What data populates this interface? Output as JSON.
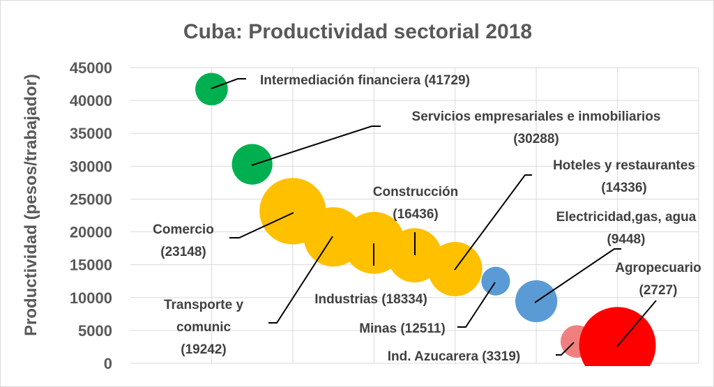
{
  "chart_data": {
    "type": "scatter",
    "subtype": "bubble",
    "title": "Cuba: Productividad sectorial 2018",
    "ylabel": "Productividad (pesos/trabajador)",
    "xlabel": "",
    "ylim": [
      0,
      45000
    ],
    "ytick_step": 5000,
    "yticks": [
      "0",
      "5000",
      "10000",
      "15000",
      "20000",
      "25000",
      "30000",
      "35000",
      "40000",
      "45000"
    ],
    "xlim": [
      0,
      14
    ],
    "grid": true,
    "legend": "none",
    "points": [
      {
        "label_lines": [
          "Intermediación financiera (41729)"
        ],
        "x": 2,
        "y": 41729,
        "size": 0.18,
        "color": "#00b050"
      },
      {
        "label_lines": [
          "Servicios empresariales e inmobiliarios",
          "(30288)"
        ],
        "x": 3,
        "y": 30288,
        "size": 0.28,
        "color": "#00b050"
      },
      {
        "label_lines": [
          "Comercio",
          "(23148)"
        ],
        "x": 4,
        "y": 23148,
        "size": 0.75,
        "color": "#ffc000"
      },
      {
        "label_lines": [
          "Transporte y",
          "comunic",
          "(19242)"
        ],
        "x": 5,
        "y": 19242,
        "size": 0.6,
        "color": "#ffc000"
      },
      {
        "label_lines": [
          "Industrias (18334)"
        ],
        "x": 6,
        "y": 18334,
        "size": 0.65,
        "color": "#ffc000"
      },
      {
        "label_lines": [
          "Construcción",
          "(16436)"
        ],
        "x": 7,
        "y": 16436,
        "size": 0.5,
        "color": "#ffc000"
      },
      {
        "label_lines": [
          "Hoteles y restaurantes",
          "(14336)"
        ],
        "x": 8,
        "y": 14336,
        "size": 0.5,
        "color": "#ffc000"
      },
      {
        "label_lines": [
          "Minas (12511)"
        ],
        "x": 9,
        "y": 12511,
        "size": 0.14,
        "color": "#5b9bd5"
      },
      {
        "label_lines": [
          "Electricidad,gas, agua",
          "(9448)"
        ],
        "x": 10,
        "y": 9448,
        "size": 0.3,
        "color": "#5b9bd5"
      },
      {
        "label_lines": [
          "Ind. Azucarera (3319)"
        ],
        "x": 11,
        "y": 3319,
        "size": 0.18,
        "color": "#f08080"
      },
      {
        "label_lines": [
          "Agropecuario",
          "(2727)"
        ],
        "x": 12,
        "y": 2727,
        "size": 1.0,
        "color": "#ff0000"
      }
    ]
  }
}
